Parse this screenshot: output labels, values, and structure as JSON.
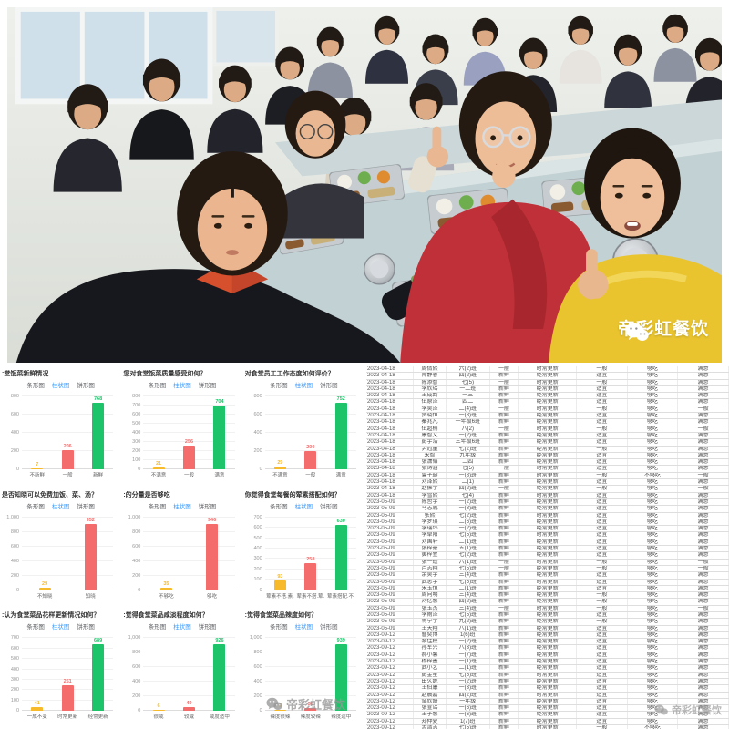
{
  "watermark": {
    "brand": "帝彩虹餐饮"
  },
  "charts": {
    "tabs": [
      "条形图",
      "柱状图",
      "饼形图"
    ],
    "tab_names": [
      "tab-bar-chart",
      "tab-column-chart",
      "tab-pie-chart"
    ],
    "active_tab": "柱状图",
    "palette": {
      "yellow": "#f7ba2a",
      "red": "#f56c6c",
      "green": "#1dc46a",
      "tab_active_blue": "#3c9cff"
    }
  },
  "chart_data": [
    {
      "type": "bar",
      "title": ":堂饭菜新鲜情况",
      "categories": [
        "不新鲜",
        "一般",
        "新鲜"
      ],
      "values": [
        7,
        206,
        768
      ],
      "colors": [
        "#f7ba2a",
        "#f56c6c",
        "#1dc46a"
      ],
      "ylim": [
        0,
        800
      ],
      "ticks": [
        0,
        200,
        400,
        600,
        800
      ]
    },
    {
      "type": "bar",
      "title": "您对食堂饭菜质量感受如何？",
      "categories": [
        "不满意",
        "一般",
        "满意"
      ],
      "values": [
        21,
        256,
        704
      ],
      "colors": [
        "#f7ba2a",
        "#f56c6c",
        "#1dc46a"
      ],
      "ylim": [
        0,
        800
      ],
      "ticks": [
        0,
        100,
        200,
        300,
        400,
        500,
        600,
        700,
        800
      ]
    },
    {
      "type": "bar",
      "title": "对食堂员工工作态度如何评价？",
      "categories": [
        "不满意",
        "一般",
        "满意"
      ],
      "values": [
        29,
        200,
        752
      ],
      "colors": [
        "#f7ba2a",
        "#f56c6c",
        "#1dc46a"
      ],
      "ylim": [
        0,
        800
      ],
      "ticks": [
        0,
        200,
        400,
        600,
        800
      ]
    },
    {
      "type": "bar",
      "title": "是否知晓可以免费加饭、菜、汤？",
      "categories": [
        "不知晓",
        "知晓"
      ],
      "values": [
        29,
        952
      ],
      "colors": [
        "#f7ba2a",
        "#f56c6c"
      ],
      "ylim": [
        0,
        1000
      ],
      "ticks": [
        0,
        200,
        400,
        600,
        800,
        1000
      ]
    },
    {
      "type": "bar",
      "title": ":的分量是否够吃",
      "categories": [
        "不够吃",
        "够吃"
      ],
      "values": [
        35,
        946
      ],
      "colors": [
        "#f7ba2a",
        "#f56c6c"
      ],
      "ylim": [
        0,
        1000
      ],
      "ticks": [
        0,
        200,
        400,
        600,
        800,
        1000
      ]
    },
    {
      "type": "bar",
      "title": "你觉得食堂每餐的荤素搭配如何？",
      "categories": [
        "荤素不搭.素.",
        "荤素不搭.荤.",
        "荤素搭配.不."
      ],
      "values": [
        93,
        258,
        630
      ],
      "colors": [
        "#f7ba2a",
        "#f56c6c",
        "#1dc46a"
      ],
      "ylim": [
        0,
        700
      ],
      "ticks": [
        0,
        100,
        200,
        300,
        400,
        500,
        600,
        700
      ]
    },
    {
      "type": "bar",
      "title": ":认为食堂菜品花样更新情况如何？",
      "categories": [
        "一成不变",
        "时常更新",
        "经常更新"
      ],
      "values": [
        41,
        251,
        689
      ],
      "colors": [
        "#f7ba2a",
        "#f56c6c",
        "#1dc46a"
      ],
      "ylim": [
        0,
        700
      ],
      "ticks": [
        0,
        100,
        200,
        300,
        400,
        500,
        600,
        700
      ]
    },
    {
      "type": "bar",
      "title": ":觉得食堂菜品咸淡程度如何？",
      "categories": [
        "很咸",
        "较咸",
        "咸度适中"
      ],
      "values": [
        6,
        49,
        926
      ],
      "colors": [
        "#f7ba2a",
        "#f56c6c",
        "#1dc46a"
      ],
      "ylim": [
        0,
        1000
      ],
      "ticks": [
        0,
        200,
        400,
        600,
        800,
        1000
      ]
    },
    {
      "type": "bar",
      "title": ":觉得食堂菜品辣度如何？",
      "categories": [
        "辣度很辣",
        "辣度较辣",
        "辣度适中"
      ],
      "values": [
        4,
        38,
        939
      ],
      "colors": [
        "#f7ba2a",
        "#f56c6c",
        "#1dc46a"
      ],
      "ylim": [
        0,
        1000
      ],
      "ticks": [
        0,
        200,
        400,
        600,
        800,
        1000
      ]
    }
  ],
  "table": {
    "rows": [
      [
        "2023-04-18",
        "周倩熙",
        "六(2)班",
        "一般",
        "时常更新",
        "一般",
        "够吃",
        "满意"
      ],
      [
        "2023-04-18",
        "帅静睿",
        "四(2)班",
        "新鲜",
        "经常更新",
        "适宜",
        "够吃",
        "满意"
      ],
      [
        "2023-04-18",
        "陈添智",
        "七(5)",
        "一般",
        "时常更新",
        "一般",
        "够吃",
        "满意"
      ],
      [
        "2023-04-18",
        "李欣瑶",
        "一二班",
        "新鲜",
        "经常更新",
        "适宜",
        "够吃",
        "满意"
      ],
      [
        "2023-04-18",
        "王成韵",
        "一三",
        "新鲜",
        "经常更新",
        "适宜",
        "够吃",
        "满意"
      ],
      [
        "2023-04-18",
        "伍原泽",
        "四二",
        "新鲜",
        "经常更新",
        "适宜",
        "够吃",
        "满意"
      ],
      [
        "2023-04-18",
        "李昊泽",
        "二(4)班",
        "一般",
        "时常更新",
        "一般",
        "够吃",
        "一般"
      ],
      [
        "2023-04-18",
        "贺晓恒",
        "一(8)班",
        "新鲜",
        "经常更新",
        "适宜",
        "够吃",
        "满意"
      ],
      [
        "2023-04-18",
        "秦兆凡",
        "一年级6班",
        "新鲜",
        "经常更新",
        "适宜",
        "够吃",
        "满意"
      ],
      [
        "2023-04-18",
        "伍超楠",
        "八(2)",
        "一般",
        "时常更新",
        "一般",
        "够吃",
        "一般"
      ],
      [
        "2023-04-18",
        "康智文",
        "一(2)班",
        "新鲜",
        "经常更新",
        "适宜",
        "够吃",
        "满意"
      ],
      [
        "2023-04-18",
        "彭宇浩",
        "三年级6班",
        "新鲜",
        "经常更新",
        "适宜",
        "够吃",
        "满意"
      ],
      [
        "2023-04-18",
        "尹冠童",
        "七(2)班",
        "新鲜",
        "经常更新",
        "一般",
        "够吃",
        "满意"
      ],
      [
        "2023-04-18",
        "宋智",
        "九年级",
        "新鲜",
        "经常更新",
        "适宜",
        "够吃",
        "满意"
      ],
      [
        "2023-04-18",
        "张潇韬",
        "二四",
        "新鲜",
        "经常更新",
        "适宜",
        "够吃",
        "满意"
      ],
      [
        "2023-04-18",
        "张诗涵",
        "七(5)",
        "一般",
        "时常更新",
        "适宜",
        "够吃",
        "满意"
      ],
      [
        "2023-04-18",
        "曾子璇",
        "一(8)班",
        "新鲜",
        "时常更新",
        "一般",
        "不够吃",
        "一般"
      ],
      [
        "2023-04-18",
        "刘泽熙",
        "二(1)",
        "新鲜",
        "经常更新",
        "适宜",
        "够吃",
        "满意"
      ],
      [
        "2023-04-18",
        "赵振宇",
        "四(2)班",
        "一般",
        "经常更新",
        "一般",
        "够吃",
        "一般"
      ],
      [
        "2023-04-18",
        "李雪熙",
        "七(4)",
        "新鲜",
        "时常更新",
        "适宜",
        "够吃",
        "满意"
      ],
      [
        "2023-05-09",
        "陈哲宇",
        "一(2)班",
        "新鲜",
        "经常更新",
        "适宜",
        "够吃",
        "满意"
      ],
      [
        "2023-05-09",
        "马志胤",
        "一(8)班",
        "新鲜",
        "经常更新",
        "适宜",
        "够吃",
        "满意"
      ],
      [
        "2023-05-09",
        "张熙",
        "七(2)班",
        "新鲜",
        "时常更新",
        "适宜",
        "够吃",
        "满意"
      ],
      [
        "2023-05-09",
        "李梦琪",
        "二(6)班",
        "新鲜",
        "经常更新",
        "适宜",
        "够吃",
        "满意"
      ],
      [
        "2023-05-09",
        "李瑞玮",
        "一(2)班",
        "新鲜",
        "经常更新",
        "适宜",
        "够吃",
        "满意"
      ],
      [
        "2023-05-09",
        "李卓阳",
        "七(5)班",
        "新鲜",
        "时常更新",
        "适宜",
        "够吃",
        "满意"
      ],
      [
        "2023-05-09",
        "刘国轩",
        "二(1)班",
        "新鲜",
        "经常更新",
        "适宜",
        "够吃",
        "满意"
      ],
      [
        "2023-05-09",
        "张梓豪",
        "五(1)班",
        "新鲜",
        "经常更新",
        "适宜",
        "够吃",
        "满意"
      ],
      [
        "2023-05-09",
        "黄梓萱",
        "七(2)班",
        "新鲜",
        "经常更新",
        "适宜",
        "够吃",
        "满意"
      ],
      [
        "2023-05-09",
        "张一遥",
        "六(1)班",
        "一般",
        "时常更新",
        "一般",
        "够吃",
        "一般"
      ],
      [
        "2023-05-09",
        "卢志翔",
        "七(5)班",
        "一般",
        "经常更新",
        "一般",
        "够吃",
        "一般"
      ],
      [
        "2023-05-09",
        "余昊宇",
        "三(4)班",
        "新鲜",
        "经常更新",
        "适宜",
        "够吃",
        "满意"
      ],
      [
        "2023-05-09",
        "武忠宇",
        "七(5)班",
        "新鲜",
        "时常更新",
        "适宜",
        "够吃",
        "满意"
      ],
      [
        "2023-05-09",
        "朱玉恒",
        "二(1)班",
        "新鲜",
        "经常更新",
        "适宜",
        "够吃",
        "满意"
      ],
      [
        "2023-05-09",
        "周向明",
        "三(4)班",
        "新鲜",
        "经常更新",
        "一般",
        "够吃",
        "满意"
      ],
      [
        "2023-05-09",
        "刘忆馨",
        "四(2)班",
        "新鲜",
        "经常更新",
        "一般",
        "够吃",
        "满意"
      ],
      [
        "2023-05-09",
        "张玉杰",
        "三(4)班",
        "一般",
        "时常更新",
        "一般",
        "够吃",
        "一般"
      ],
      [
        "2023-05-09",
        "李雨泽",
        "七(5)班",
        "新鲜",
        "经常更新",
        "适宜",
        "够吃",
        "满意"
      ],
      [
        "2023-05-09",
        "蒋宁宇",
        "九(2)班",
        "新鲜",
        "经常更新",
        "一般",
        "够吃",
        "满意"
      ],
      [
        "2023-05-09",
        "王天翔",
        "八(1)班",
        "新鲜",
        "经常更新",
        "适宜",
        "够吃",
        "满意"
      ],
      [
        "2023-09-12",
        "曹奕博",
        "1(6)班",
        "新鲜",
        "经常更新",
        "适宜",
        "够吃",
        "满意"
      ],
      [
        "2023-09-12",
        "黎佳校",
        "一(2)班",
        "新鲜",
        "经常更新",
        "适宜",
        "够吃",
        "满意"
      ],
      [
        "2023-09-12",
        "孙军兴",
        "八(3)班",
        "新鲜",
        "经常更新",
        "适宜",
        "够吃",
        "满意"
      ],
      [
        "2023-09-12",
        "郝小馨",
        "一(7)班",
        "新鲜",
        "经常更新",
        "适宜",
        "够吃",
        "满意"
      ],
      [
        "2023-09-12",
        "杨梓墨",
        "一(1)班",
        "新鲜",
        "经常更新",
        "适宜",
        "够吃",
        "满意"
      ],
      [
        "2023-09-12",
        "武小艺",
        "二(1)班",
        "新鲜",
        "经常更新",
        "适宜",
        "够吃",
        "满意"
      ],
      [
        "2023-09-12",
        "彭金星",
        "七(5)班",
        "新鲜",
        "时常更新",
        "适宜",
        "够吃",
        "满意"
      ],
      [
        "2023-09-12",
        "田久妮",
        "一(2)班",
        "新鲜",
        "经常更新",
        "适宜",
        "够吃",
        "满意"
      ],
      [
        "2023-09-12",
        "王伯康",
        "一(3)班",
        "新鲜",
        "经常更新",
        "适宜",
        "够吃",
        "满意"
      ],
      [
        "2023-09-12",
        "赵晨嘉",
        "四(2)班",
        "新鲜",
        "时常更新",
        "适宜",
        "够吃",
        "满意"
      ],
      [
        "2023-09-12",
        "邹欣妍",
        "一年级",
        "新鲜",
        "经常更新",
        "适宜",
        "够吃",
        "满意"
      ],
      [
        "2023-09-12",
        "张宣谣",
        "一(6)班",
        "新鲜",
        "经常更新",
        "适宜",
        "够吃",
        "满意"
      ],
      [
        "2023-09-12",
        "王子馨",
        "一(6)班",
        "新鲜",
        "经常更新",
        "适宜",
        "够吃",
        "满意"
      ],
      [
        "2023-09-12",
        "郑仲夏",
        "1(7)班",
        "新鲜",
        "经常更新",
        "适宜",
        "够吃",
        "满意"
      ],
      [
        "2023-09-12",
        "孟清志",
        "七(5)班",
        "新鲜",
        "时常更新",
        "一般",
        "不够吃",
        "满意"
      ],
      [
        "2023-09-12",
        "董一诺",
        "一(3)班",
        "新鲜",
        "经常更新",
        "适宜",
        "够吃",
        "满意"
      ],
      [
        "2023-09-12",
        "刘仲霆",
        "一(6)班",
        "一般",
        "时常更新",
        "一般",
        "够吃",
        "一般"
      ],
      [
        "2023-09-12",
        "李允凡",
        "一(6)班",
        "新鲜",
        "经常更新",
        "适宜",
        "够吃",
        "满意"
      ],
      [
        "2023-09-12",
        "赵梓悦",
        "一(6)班",
        "新鲜",
        "经常更新",
        "一般",
        "够吃",
        "满意"
      ],
      [
        "2023-09-12",
        "付可馨",
        "一(6)班",
        "一般",
        "经常更新",
        "一般",
        "够吃",
        "一般"
      ]
    ]
  }
}
